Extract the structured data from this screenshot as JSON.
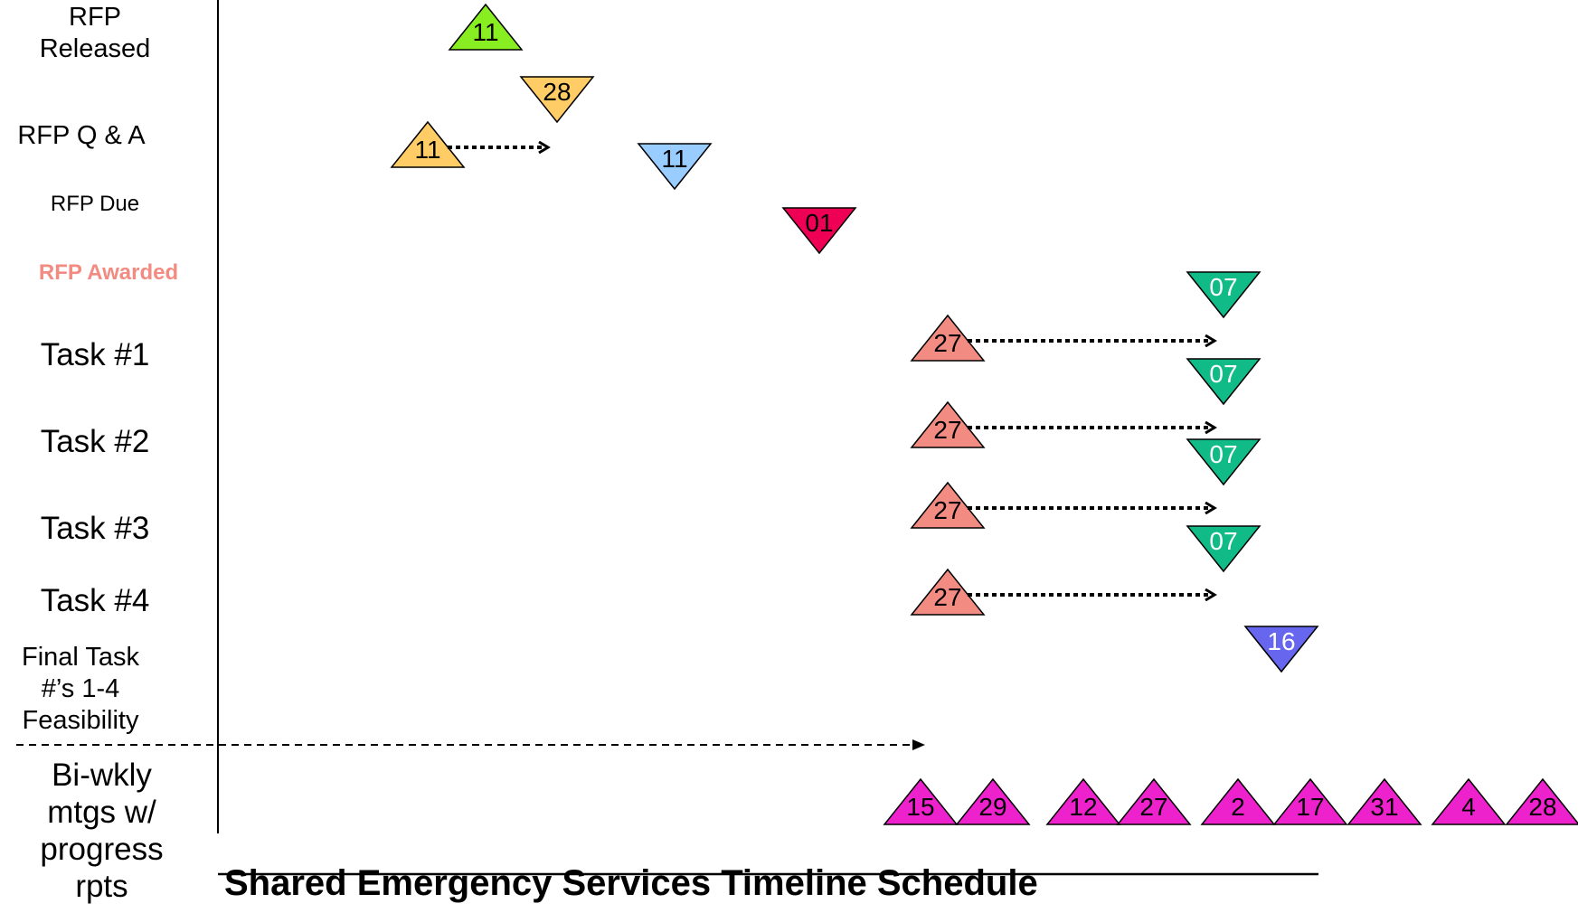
{
  "title": "Shared Emergency Services Timeline Schedule",
  "colors": {
    "green": "#88ee22",
    "orange": "#ffcc66",
    "blue": "#99ccff",
    "crimson": "#ee0055",
    "salmon": "#f28b82",
    "teal": "#11bb88",
    "purple": "#6666ee",
    "magenta": "#ee22cc"
  },
  "rows": [
    {
      "label": "RFP\nReleased",
      "milestones": [
        {
          "day": "11",
          "shape": "up",
          "color": "green"
        }
      ]
    },
    {
      "label": "RFP Q & A",
      "milestones": [
        {
          "day": "11",
          "shape": "up",
          "color": "orange"
        },
        {
          "day": "28",
          "shape": "down",
          "color": "orange"
        }
      ],
      "arrow": true
    },
    {
      "label": "RFP Due",
      "milestones": [
        {
          "day": "11",
          "shape": "down",
          "color": "blue"
        }
      ]
    },
    {
      "label": "RFP Awarded",
      "milestones": [
        {
          "day": "01",
          "shape": "down",
          "color": "crimson"
        }
      ]
    },
    {
      "label": "Task #1",
      "milestones": [
        {
          "day": "27",
          "shape": "up",
          "color": "salmon"
        },
        {
          "day": "07",
          "shape": "down",
          "color": "teal"
        }
      ],
      "arrow": true
    },
    {
      "label": "Task #2",
      "milestones": [
        {
          "day": "27",
          "shape": "up",
          "color": "salmon"
        },
        {
          "day": "07",
          "shape": "down",
          "color": "teal"
        }
      ],
      "arrow": true
    },
    {
      "label": "Task #3",
      "milestones": [
        {
          "day": "27",
          "shape": "up",
          "color": "salmon"
        },
        {
          "day": "07",
          "shape": "down",
          "color": "teal"
        }
      ],
      "arrow": true
    },
    {
      "label": "Task #4",
      "milestones": [
        {
          "day": "27",
          "shape": "up",
          "color": "salmon"
        },
        {
          "day": "07",
          "shape": "down",
          "color": "teal"
        }
      ],
      "arrow": true
    },
    {
      "label": "Final Task\n#’s 1-4\nFeasibility",
      "milestones": [
        {
          "day": "16",
          "shape": "down",
          "color": "purple"
        }
      ]
    },
    {
      "label": "Bi-wkly\nmtgs w/\nprogress\nrpts",
      "milestones": [
        {
          "day": "15",
          "shape": "up",
          "color": "magenta"
        },
        {
          "day": "29",
          "shape": "up",
          "color": "magenta"
        },
        {
          "day": "12",
          "shape": "up",
          "color": "magenta"
        },
        {
          "day": "27",
          "shape": "up",
          "color": "magenta"
        },
        {
          "day": "2",
          "shape": "up",
          "color": "magenta"
        },
        {
          "day": "17",
          "shape": "up",
          "color": "magenta"
        },
        {
          "day": "31",
          "shape": "up",
          "color": "magenta"
        },
        {
          "day": "4",
          "shape": "up",
          "color": "magenta"
        },
        {
          "day": "28",
          "shape": "up",
          "color": "magenta"
        }
      ]
    }
  ]
}
